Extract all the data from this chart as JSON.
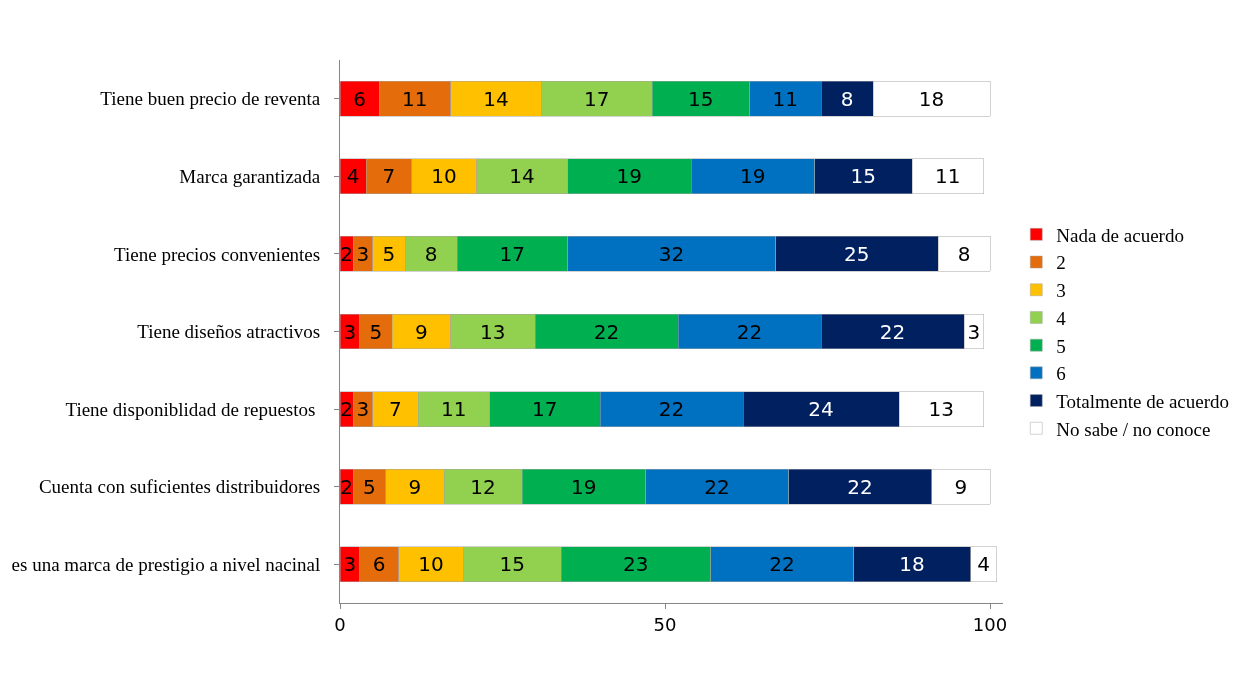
{
  "chart_data": {
    "type": "bar",
    "orientation": "horizontal",
    "stacked": true,
    "data_labels": true,
    "legend": "right",
    "categories": [
      "Tiene buen precio de reventa",
      "Marca garantizada",
      "Tiene precios convenientes",
      "Tiene diseños atractivos",
      "Tiene disponiblidad de repuestos ",
      "Cuenta con suficientes distribuidores",
      "es una marca de prestigio a nivel nacinal"
    ],
    "xlim": [
      0,
      102
    ],
    "xticks": [
      0,
      50,
      100
    ],
    "series": [
      {
        "name": "Nada de acuerdo",
        "color": "#ff0000",
        "values": [
          6,
          4,
          2,
          3,
          2,
          2,
          3
        ]
      },
      {
        "name": "2",
        "color": "#e46c0a",
        "values": [
          11,
          7,
          3,
          5,
          3,
          5,
          6
        ]
      },
      {
        "name": "3",
        "color": "#ffc000",
        "values": [
          14,
          10,
          5,
          9,
          7,
          9,
          10
        ]
      },
      {
        "name": "4",
        "color": "#92d050",
        "values": [
          17,
          14,
          8,
          13,
          11,
          12,
          15
        ]
      },
      {
        "name": "5",
        "color": "#00b050",
        "values": [
          15,
          19,
          17,
          22,
          17,
          19,
          23
        ]
      },
      {
        "name": "6",
        "color": "#0070c0",
        "values": [
          11,
          19,
          32,
          22,
          22,
          22,
          22
        ]
      },
      {
        "name": "Totalmente de acuerdo",
        "color": "#002060",
        "values": [
          8,
          15,
          25,
          22,
          24,
          22,
          18
        ]
      },
      {
        "name": "No sabe / no conoce",
        "color": "#ffffff",
        "values": [
          18,
          11,
          8,
          3,
          13,
          9,
          4
        ]
      }
    ]
  }
}
